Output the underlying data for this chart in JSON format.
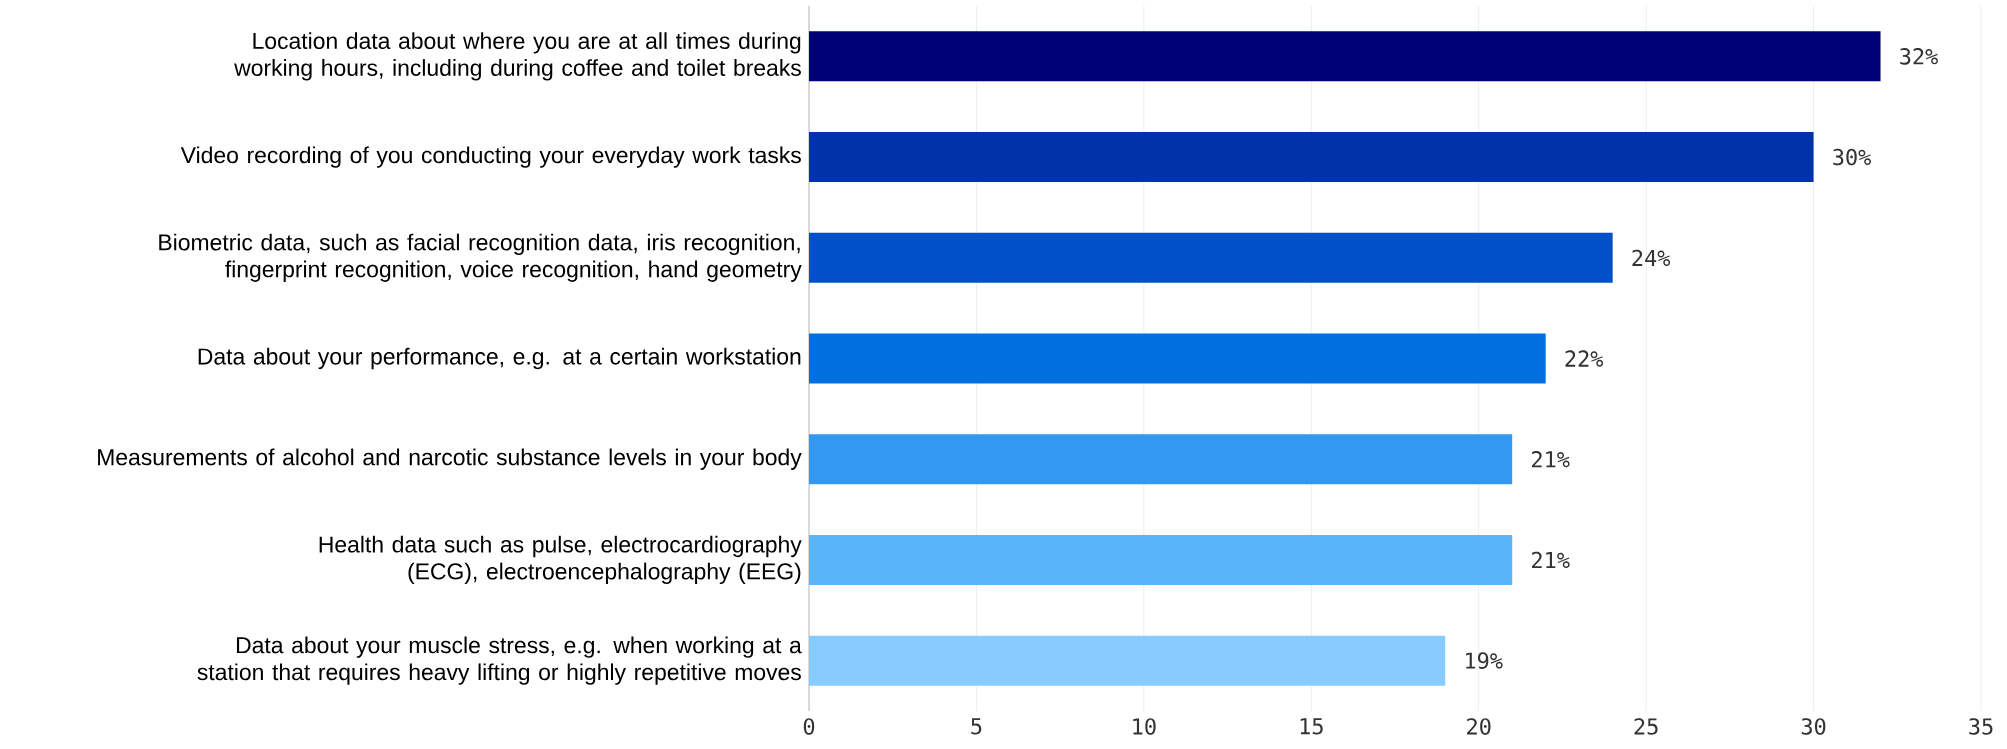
{
  "chart_data": {
    "type": "bar",
    "orientation": "horizontal",
    "categories": [
      "Location data about where you are at all times during working hours, including during coffee and toilet breaks",
      "Video recording of you conducting your everyday work tasks",
      "Biometric data, such as facial recognition data, iris recognition, fingerprint recognition, voice recognition, hand geometry",
      "Data about your performance, e.g. at a certain workstation",
      "Measurements of alcohol and narcotic substance levels in your body",
      "Health data such as pulse, electrocardiography (ECG), electroencephalography (EEG)",
      "Data about your muscle stress, e.g. when working at a station that requires heavy lifting or highly repetitive moves"
    ],
    "values": [
      32,
      30,
      24,
      22,
      21,
      21,
      19
    ],
    "value_labels": [
      "32%",
      "30%",
      "24%",
      "22%",
      "21%",
      "21%",
      "19%"
    ],
    "colors": [
      "#000077",
      "#0033aa",
      "#0050c8",
      "#0070e0",
      "#3399f0",
      "#5ab4fa",
      "#88ccff"
    ],
    "xlim": [
      0,
      35
    ],
    "xticks": [
      0,
      5,
      10,
      15,
      20,
      25,
      30,
      35
    ],
    "grid": "x"
  }
}
